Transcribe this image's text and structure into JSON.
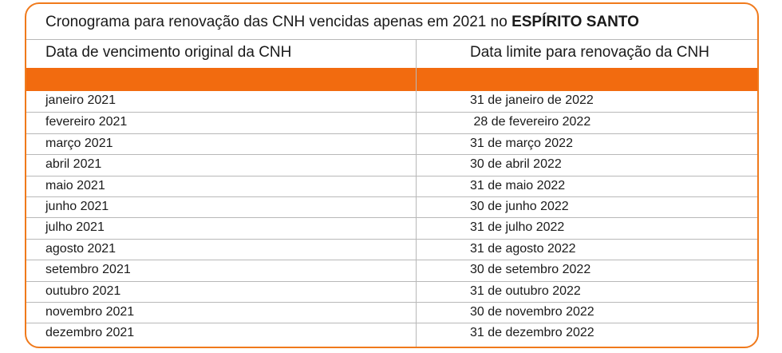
{
  "title": {
    "prefix": "Cronograma para renovação das CNH vencidas apenas em 2021 no ",
    "bold": "ESPÍRITO SANTO"
  },
  "table": {
    "headers": [
      "Data de vencimento original da CNH",
      "Data limite para renovação da CNH"
    ],
    "rows": [
      [
        "janeiro 2021",
        "31 de janeiro de 2022"
      ],
      [
        "fevereiro 2021",
        " 28 de fevereiro 2022"
      ],
      [
        "março 2021",
        "31 de março 2022"
      ],
      [
        "abril 2021",
        "30 de abril 2022"
      ],
      [
        "maio 2021",
        "31 de maio 2022"
      ],
      [
        "junho 2021",
        "30 de junho 2022"
      ],
      [
        "julho 2021",
        "31 de julho 2022"
      ],
      [
        "agosto 2021",
        "31 de agosto 2022"
      ],
      [
        "setembro 2021",
        "30 de setembro 2022"
      ],
      [
        "outubro 2021",
        "31 de outubro 2022"
      ],
      [
        "novembro 2021",
        "30 de novembro 2022"
      ],
      [
        "dezembro 2021",
        "31 de dezembro 2022"
      ]
    ]
  },
  "colors": {
    "border": "#f07a1c",
    "band": "#f26b0f",
    "grid": "#b8b8b8"
  }
}
